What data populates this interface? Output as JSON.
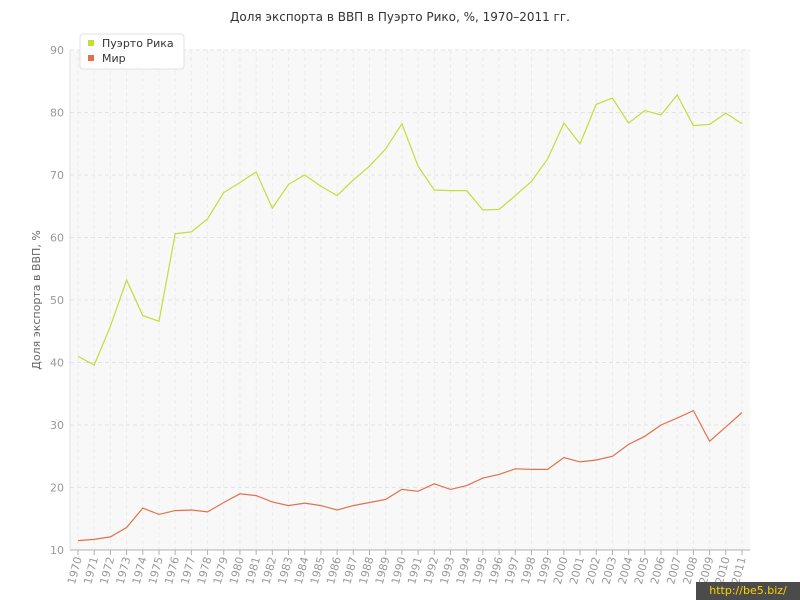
{
  "chart_data": {
    "type": "line",
    "title": "Доля экспорта в ВВП в Пуэрто Рико, %, 1970–2011 гг.",
    "xlabel": "",
    "ylabel": "Доля экспорта в ВВП, %",
    "ylim": [
      10,
      90
    ],
    "yticks": [
      10,
      20,
      30,
      40,
      50,
      60,
      70,
      80,
      90
    ],
    "grid": true,
    "legend_position": "top-left",
    "x": [
      "1970",
      "1971",
      "1972",
      "1973",
      "1974",
      "1975",
      "1976",
      "1977",
      "1978",
      "1979",
      "1980",
      "1981",
      "1982",
      "1983",
      "1984",
      "1985",
      "1986",
      "1987",
      "1988",
      "1989",
      "1990",
      "1991",
      "1992",
      "1993",
      "1994",
      "1995",
      "1996",
      "1997",
      "1998",
      "1999",
      "2000",
      "2001",
      "2002",
      "2003",
      "2004",
      "2005",
      "2006",
      "2007",
      "2008",
      "2009",
      "2010",
      "2011"
    ],
    "series": [
      {
        "name": "Пуэрто Рика",
        "color": "#c4dd3a",
        "values": [
          41.0,
          39.6,
          45.8,
          53.2,
          47.5,
          46.6,
          60.6,
          60.9,
          63.0,
          67.2,
          68.8,
          70.5,
          64.7,
          68.5,
          70.0,
          68.2,
          66.7,
          69.2,
          71.4,
          74.2,
          78.2,
          71.4,
          67.6,
          67.5,
          67.5,
          64.4,
          64.5,
          66.7,
          69.0,
          72.6,
          78.3,
          75.0,
          81.3,
          82.3,
          78.3,
          80.3,
          79.6,
          82.8,
          77.9,
          78.1,
          79.9,
          78.2
        ]
      },
      {
        "name": "Мир",
        "color": "#e2714b",
        "values": [
          11.5,
          11.7,
          12.1,
          13.6,
          16.7,
          15.7,
          16.3,
          16.4,
          16.1,
          17.6,
          19.0,
          18.7,
          17.7,
          17.1,
          17.5,
          17.1,
          16.4,
          17.1,
          17.6,
          18.1,
          19.7,
          19.4,
          20.6,
          19.7,
          20.3,
          21.5,
          22.1,
          23.0,
          22.9,
          22.9,
          24.8,
          24.1,
          24.4,
          25.0,
          26.9,
          28.2,
          30.0,
          31.1,
          32.3,
          27.4,
          29.7,
          32.0
        ]
      }
    ]
  },
  "watermark": "http://be5.biz/"
}
